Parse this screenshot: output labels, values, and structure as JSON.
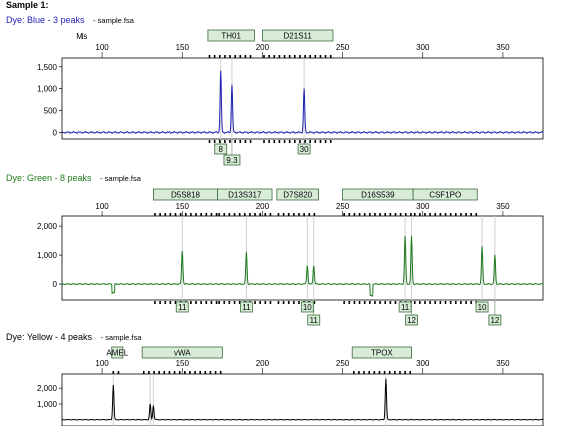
{
  "title": "Sample 1:",
  "colors": {
    "blue": "#1f1fb4",
    "green": "#1e7a1e",
    "yellow": "#000000",
    "bin_fill": "#d8ecd8",
    "bin_stroke": "#3a6b3a"
  },
  "chart_data": [
    {
      "type": "line",
      "dye_label": "Dye: Blue - 3 peaks",
      "file_label": "- sample.fsa",
      "x_ticks": [
        100,
        150,
        200,
        250,
        300,
        350
      ],
      "xlim": [
        75,
        375
      ],
      "y_ticks": [
        0,
        500,
        1000,
        1500
      ],
      "y_tick_labels": [
        "0",
        "500",
        "1,000",
        "1,500"
      ],
      "ylim": [
        -150,
        1700
      ],
      "loci": [
        {
          "name": "TH01",
          "start": 166,
          "end": 195
        },
        {
          "name": "D21S11",
          "start": 200,
          "end": 244
        }
      ],
      "markers": [
        {
          "name": "M",
          "pos": 86
        },
        {
          "name": "is",
          "pos": 89
        }
      ],
      "peaks": [
        {
          "x": 174,
          "y": 1400,
          "label": "8"
        },
        {
          "x": 181,
          "y": 1100,
          "label": "9.3"
        },
        {
          "x": 226,
          "y": 1000,
          "label": "30"
        }
      ]
    },
    {
      "type": "line",
      "dye_label": "Dye: Green - 8 peaks",
      "file_label": "- sample.fsa",
      "x_ticks": [
        100,
        150,
        200,
        250,
        300,
        350
      ],
      "xlim": [
        75,
        375
      ],
      "y_ticks": [
        0,
        1000,
        2000
      ],
      "y_tick_labels": [
        "0",
        "1,000",
        "2,000"
      ],
      "ylim": [
        -550,
        2350
      ],
      "loci": [
        {
          "name": "D5S818",
          "start": 132,
          "end": 172
        },
        {
          "name": "D13S317",
          "start": 172,
          "end": 206
        },
        {
          "name": "D7S820",
          "start": 209,
          "end": 235
        },
        {
          "name": "D16S539",
          "start": 250,
          "end": 294
        },
        {
          "name": "CSF1PO",
          "start": 294,
          "end": 334
        }
      ],
      "peaks": [
        {
          "x": 150,
          "y": 1150,
          "label": "11"
        },
        {
          "x": 190,
          "y": 1100,
          "label": "11"
        },
        {
          "x": 228,
          "y": 650,
          "label": "10"
        },
        {
          "x": 232,
          "y": 650,
          "label": "11"
        },
        {
          "x": 289,
          "y": 1650,
          "label": "11"
        },
        {
          "x": 293,
          "y": 1650,
          "label": "12"
        },
        {
          "x": 337,
          "y": 1300,
          "label": "10"
        },
        {
          "x": 345,
          "y": 1000,
          "label": "12"
        }
      ]
    },
    {
      "type": "line",
      "dye_label": "Dye: Yellow - 4 peaks",
      "file_label": "- sample.fsa",
      "x_ticks": [
        100,
        150,
        200,
        250,
        300,
        350
      ],
      "xlim": [
        75,
        375
      ],
      "y_ticks": [
        1000,
        2000
      ],
      "y_tick_labels": [
        "1,000",
        "2,000"
      ],
      "ylim": [
        -400,
        2900
      ],
      "loci": [
        {
          "name": "AMEL",
          "start": 106,
          "end": 113
        },
        {
          "name": "vWA",
          "start": 125,
          "end": 175
        },
        {
          "name": "TPOX",
          "start": 256,
          "end": 293
        }
      ],
      "peaks": [
        {
          "x": 107,
          "y": 2200
        },
        {
          "x": 130,
          "y": 1000
        },
        {
          "x": 132,
          "y": 900
        },
        {
          "x": 277,
          "y": 2600
        }
      ]
    }
  ]
}
